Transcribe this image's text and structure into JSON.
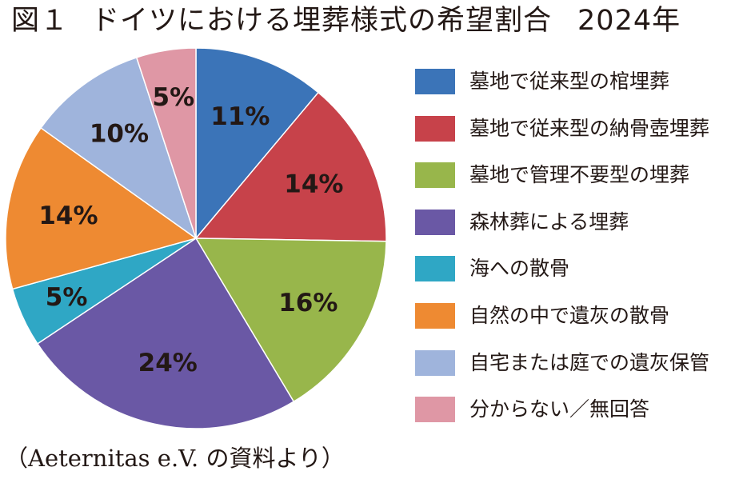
{
  "title": {
    "prefix": "図１",
    "text": "ドイツにおける埋葬様式の希望割合",
    "year": "2024年"
  },
  "source": "（Aeternitas e.V. の資料より）",
  "chart_data": {
    "type": "pie",
    "title": "図１　ドイツにおける埋葬様式の希望割合　2024年",
    "legend_placement": "right",
    "slices": [
      {
        "label": "墓地で従来型の棺埋葬",
        "value": 11,
        "value_label": "11%",
        "color": "#3b74b8"
      },
      {
        "label": "墓地で従来型の納骨壺埋葬",
        "value": 14,
        "value_label": "14%",
        "color": "#c7424a"
      },
      {
        "label": "墓地で管理不要型の埋葬",
        "value": 16,
        "value_label": "16%",
        "color": "#98b64b"
      },
      {
        "label": "森林葬による埋葬",
        "value": 24,
        "value_label": "24%",
        "color": "#6a58a5"
      },
      {
        "label": "海への散骨",
        "value": 5,
        "value_label": "5%",
        "color": "#2fa7c5"
      },
      {
        "label": "自然の中で遺灰の散骨",
        "value": 14,
        "value_label": "14%",
        "color": "#ee8a32"
      },
      {
        "label": "自宅または庭での遺灰保管",
        "value": 10,
        "value_label": "10%",
        "color": "#9fb4dc"
      },
      {
        "label": "分からない／無回答",
        "value": 5,
        "value_label": "5%",
        "color": "#df97a5"
      }
    ]
  }
}
